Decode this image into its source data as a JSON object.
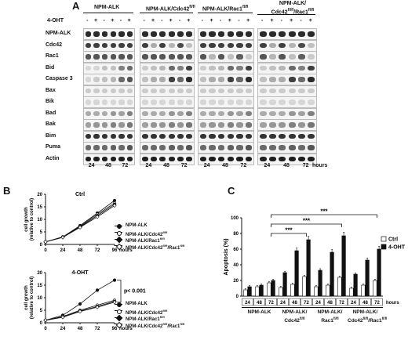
{
  "panels": {
    "a": "A",
    "b": "B",
    "c": "C"
  },
  "panelA": {
    "treatment_label": "4-OHT",
    "groups": [
      {
        "label": "NPM-ALK",
        "sup": ""
      },
      {
        "label": "NPM-ALK/Cdc42",
        "sup": "fl/fl"
      },
      {
        "label": "NPM-ALK/Rac1",
        "sup": "fl/fl"
      },
      {
        "label1": "NPM-ALK/",
        "label2": "Cdc42",
        "sup2": "fl/fl",
        "label3": "/Rac1",
        "sup3": "fl/fl"
      }
    ],
    "signs": [
      "-",
      "+",
      "-",
      "+",
      "-",
      "+"
    ],
    "rows": [
      "NPM-ALK",
      "Cdc42",
      "Rac1",
      "Bid",
      "Caspase 3",
      "Bax",
      "Bik",
      "Bad",
      "Bak",
      "Bim",
      "Puma",
      "Actin"
    ],
    "timepoints": [
      "24",
      "48",
      "72"
    ],
    "hours_label": "hours"
  },
  "panelB": {
    "chart_data": [
      {
        "type": "line",
        "title": "Ctrl",
        "ylabel": "cell growth (relative to control)",
        "xlabel": "hours",
        "x": [
          0,
          24,
          48,
          72,
          96
        ],
        "xticks": [
          "0",
          "24",
          "48",
          "72",
          "96"
        ],
        "yticks": [
          "0",
          "5",
          "10",
          "15",
          "20"
        ],
        "ylim": [
          0,
          20
        ],
        "series": [
          {
            "name": "NPM-ALK",
            "values": [
              1,
              3,
              7.5,
              12.5,
              17.5
            ]
          },
          {
            "name": "NPM-ALK/Cdc42fl/fl",
            "values": [
              1,
              3,
              7.2,
              12,
              16.5
            ]
          },
          {
            "name": "NPM-ALK/Rac1fl/fl",
            "values": [
              1,
              2.8,
              7,
              11.5,
              16
            ]
          },
          {
            "name": "NPM-ALK/Cdc42fl/fl/Rac1fl/fl",
            "values": [
              1,
              2.8,
              6.8,
              11,
              15.5
            ]
          }
        ]
      },
      {
        "type": "line",
        "title": "4-OHT",
        "ylabel": "cell growth (relative to control)",
        "xlabel": "hours",
        "x": [
          0,
          24,
          48,
          72,
          96
        ],
        "xticks": [
          "0",
          "24",
          "48",
          "72",
          "96"
        ],
        "yticks": [
          "0",
          "5",
          "10",
          "15",
          "20"
        ],
        "ylim": [
          0,
          20
        ],
        "annotation": "p< 0.001",
        "series": [
          {
            "name": "NPM-ALK",
            "values": [
              1,
              3,
              7.5,
              13,
              17
            ]
          },
          {
            "name": "NPM-ALK/Cdc42fl/fl",
            "values": [
              1,
              2.5,
              5,
              7,
              9
            ]
          },
          {
            "name": "NPM-ALK/Rac1fl/fl",
            "values": [
              1,
              2.3,
              4.7,
              6.5,
              8.5
            ]
          },
          {
            "name": "NPM-ALK/Cdc42fl/fl/Rac1fl/fl",
            "values": [
              1,
              2.2,
              4.5,
              6.2,
              8.2
            ]
          }
        ]
      }
    ],
    "legend": [
      {
        "base": "NPM-ALK",
        "sup": "",
        "mid": "",
        "sup2": ""
      },
      {
        "base": "NPM-ALK/Cdc42",
        "sup": "fl/fl",
        "mid": "",
        "sup2": ""
      },
      {
        "base": "NPM-ALK/Rac1",
        "sup": "fl/fl",
        "mid": "",
        "sup2": ""
      },
      {
        "base": "NPM-ALK/Cdc42",
        "sup": "fl/fl",
        "mid": "/Rac1",
        "sup2": "fl/fl"
      }
    ]
  },
  "panelC": {
    "chart_data": {
      "type": "bar",
      "ylabel": "Apoptosis (%)",
      "xlabel": "hours",
      "ylim": [
        0,
        100
      ],
      "yticks": [
        "0",
        "20",
        "40",
        "60",
        "80",
        "100"
      ],
      "timepoints": [
        "24",
        "48",
        "72"
      ],
      "groups": [
        "NPM-ALK",
        "NPM-ALK/Cdc42fl/fl",
        "NPM-ALK/Rac1fl/fl",
        "NPM-ALK/Cdc42fl/fl/Rac1fl/fl"
      ],
      "series": [
        {
          "name": "Ctrl",
          "color": "#ffffff",
          "values": [
            8,
            12,
            17,
            11,
            15,
            25,
            12,
            14,
            24,
            10,
            14,
            20
          ]
        },
        {
          "name": "4-OHT",
          "color": "#111111",
          "values": [
            12,
            14,
            20,
            30,
            58,
            72,
            33,
            56,
            77,
            28,
            46,
            60
          ]
        }
      ],
      "significance": [
        "***",
        "***",
        "***"
      ]
    },
    "legend": {
      "ctrl": "Ctrl",
      "oht": "4-OHT"
    },
    "group_labels": [
      {
        "l1": "NPM-ALK",
        "l2": "",
        "sup2": "",
        "l3": "",
        "sup3": ""
      },
      {
        "l1": "NPM-ALK/",
        "l2": "Cdc42",
        "sup2": "fl/fl",
        "l3": "",
        "sup3": ""
      },
      {
        "l1": "NPM-ALK/",
        "l2": "Rac1",
        "sup2": "fl/fl",
        "l3": "",
        "sup3": ""
      },
      {
        "l1": "NPM-ALK/",
        "l2": "Cdc42",
        "sup2": "fl/fl",
        "l3": "/Rac1",
        "sup3": "fl/fl"
      }
    ]
  }
}
